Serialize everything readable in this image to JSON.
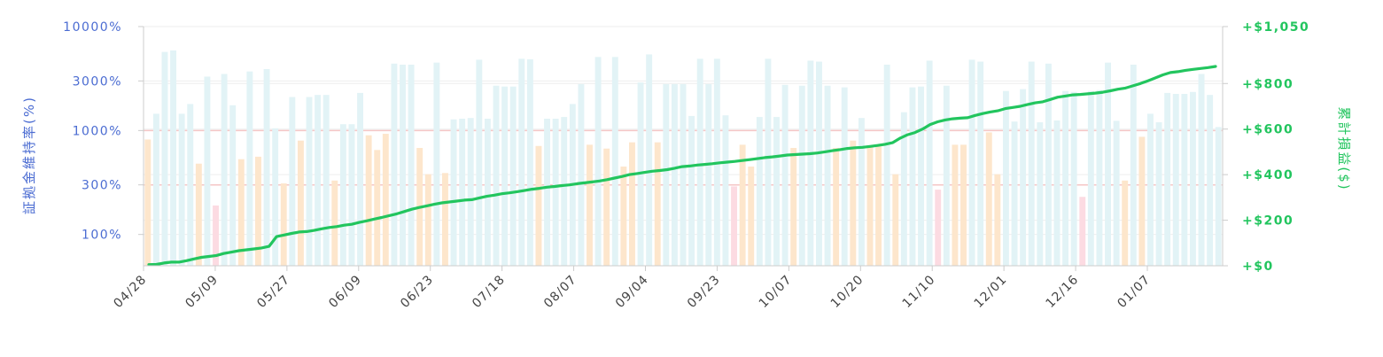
{
  "chart_data": {
    "type": "bar+line",
    "title": "",
    "x_tick_labels": [
      "04/28",
      "05/09",
      "05/27",
      "06/09",
      "06/23",
      "07/18",
      "08/07",
      "09/04",
      "09/23",
      "10/07",
      "10/20",
      "11/10",
      "12/01",
      "12/16",
      "01/07"
    ],
    "left_axis": {
      "label": "証拠金維持率(%)",
      "scale": "log",
      "range": [
        50,
        10000
      ],
      "tick_values": [
        100,
        300,
        1000,
        3000,
        10000
      ],
      "tick_labels": [
        "100%",
        "300%",
        "1000%",
        "3000%",
        "10000%"
      ],
      "reference_lines": [
        300,
        1000
      ]
    },
    "right_axis": {
      "label": "累計損益($)",
      "range": [
        0,
        1050
      ],
      "tick_values": [
        0,
        200,
        400,
        600,
        800,
        1050
      ],
      "tick_labels": [
        "+$0",
        "+$200",
        "+$400",
        "+$600",
        "+$800",
        "+$1,050"
      ]
    },
    "series": [
      {
        "kind": "bar",
        "axis": "left",
        "values": [
          820,
          1450,
          5700,
          5900,
          1450,
          1800,
          480,
          3300,
          190,
          3500,
          1750,
          530,
          3700,
          560,
          3900,
          1050,
          310,
          2100,
          800,
          2100,
          2200,
          2200,
          330,
          1150,
          1150,
          2300,
          900,
          650,
          930,
          4400,
          4300,
          4300,
          680,
          380,
          4500,
          390,
          1280,
          1300,
          1320,
          4800,
          1300,
          2700,
          2650,
          2650,
          4900,
          4850,
          710,
          1300,
          1300,
          1350,
          1800,
          2800,
          730,
          5100,
          670,
          5100,
          450,
          770,
          2900,
          5400,
          770,
          2800,
          2800,
          2800,
          1380,
          4900,
          2800,
          4900,
          1400,
          290,
          730,
          450,
          1350,
          4900,
          1350,
          2750,
          680,
          2700,
          4700,
          4600,
          2700,
          680,
          2600,
          800,
          1320,
          700,
          700,
          4300,
          380,
          1500,
          2600,
          2650,
          4700,
          270,
          2700,
          730,
          730,
          4800,
          4600,
          960,
          380,
          2400,
          1220,
          2500,
          4600,
          1200,
          4400,
          1250,
          2400,
          2350,
          230,
          2400,
          2450,
          4500,
          1240,
          330,
          4300,
          870,
          1450,
          1200,
          2300,
          2250,
          2250,
          2350,
          3500,
          2200,
          1080
        ],
        "colors": [
          "#fde6cc",
          "#e2f3f6",
          "#e2f3f6",
          "#e2f3f6",
          "#e2f3f6",
          "#e2f3f6",
          "#fde6cc",
          "#e2f3f6",
          "#fcdbe2",
          "#e2f3f6",
          "#e2f3f6",
          "#fde6cc",
          "#e2f3f6",
          "#fde6cc",
          "#e2f3f6",
          "#e2f3f6",
          "#fde6cc",
          "#e2f3f6",
          "#fde6cc",
          "#e2f3f6",
          "#e2f3f6",
          "#e2f3f6",
          "#fde6cc",
          "#e2f3f6",
          "#e2f3f6",
          "#e2f3f6",
          "#fde6cc",
          "#fde6cc",
          "#fde6cc",
          "#e2f3f6",
          "#e2f3f6",
          "#e2f3f6",
          "#fde6cc",
          "#fde6cc",
          "#e2f3f6",
          "#fde6cc",
          "#e2f3f6",
          "#e2f3f6",
          "#e2f3f6",
          "#e2f3f6",
          "#e2f3f6",
          "#e2f3f6",
          "#e2f3f6",
          "#e2f3f6",
          "#e2f3f6",
          "#e2f3f6",
          "#fde6cc",
          "#e2f3f6",
          "#e2f3f6",
          "#e2f3f6",
          "#e2f3f6",
          "#e2f3f6",
          "#fde6cc",
          "#e2f3f6",
          "#fde6cc",
          "#e2f3f6",
          "#fde6cc",
          "#fde6cc",
          "#e2f3f6",
          "#e2f3f6",
          "#fde6cc",
          "#e2f3f6",
          "#e2f3f6",
          "#e2f3f6",
          "#e2f3f6",
          "#e2f3f6",
          "#e2f3f6",
          "#e2f3f6",
          "#e2f3f6",
          "#fcdbe2",
          "#fde6cc",
          "#fde6cc",
          "#e2f3f6",
          "#e2f3f6",
          "#e2f3f6",
          "#e2f3f6",
          "#fde6cc",
          "#e2f3f6",
          "#e2f3f6",
          "#e2f3f6",
          "#e2f3f6",
          "#fde6cc",
          "#e2f3f6",
          "#fde6cc",
          "#e2f3f6",
          "#fde6cc",
          "#fde6cc",
          "#e2f3f6",
          "#fde6cc",
          "#e2f3f6",
          "#e2f3f6",
          "#e2f3f6",
          "#e2f3f6",
          "#fcdbe2",
          "#e2f3f6",
          "#fde6cc",
          "#fde6cc",
          "#e2f3f6",
          "#e2f3f6",
          "#fde6cc",
          "#fde6cc",
          "#e2f3f6",
          "#e2f3f6",
          "#e2f3f6",
          "#e2f3f6",
          "#e2f3f6",
          "#e2f3f6",
          "#e2f3f6",
          "#e2f3f6",
          "#e2f3f6",
          "#fcdbe2",
          "#e2f3f6",
          "#e2f3f6",
          "#e2f3f6",
          "#e2f3f6",
          "#fde6cc",
          "#e2f3f6",
          "#fde6cc",
          "#e2f3f6",
          "#e2f3f6",
          "#e2f3f6",
          "#e2f3f6",
          "#e2f3f6",
          "#e2f3f6",
          "#e2f3f6",
          "#e2f3f6",
          "#e2f3f6"
        ]
      },
      {
        "kind": "line",
        "axis": "right",
        "color": "#22c55e",
        "values": [
          5,
          6,
          12,
          16,
          16,
          22,
          30,
          37,
          41,
          45,
          54,
          60,
          66,
          70,
          74,
          78,
          85,
          128,
          135,
          142,
          148,
          150,
          155,
          162,
          168,
          172,
          178,
          182,
          190,
          197,
          205,
          212,
          220,
          228,
          238,
          248,
          256,
          263,
          270,
          276,
          280,
          284,
          288,
          290,
          298,
          305,
          310,
          316,
          320,
          325,
          330,
          336,
          340,
          345,
          348,
          352,
          355,
          360,
          364,
          368,
          372,
          378,
          385,
          392,
          400,
          405,
          410,
          415,
          418,
          422,
          428,
          435,
          438,
          442,
          445,
          448,
          452,
          455,
          458,
          462,
          466,
          470,
          475,
          478,
          482,
          486,
          488,
          490,
          492,
          495,
          500,
          505,
          510,
          515,
          518,
          520,
          524,
          528,
          533,
          540,
          560,
          575,
          585,
          600,
          620,
          632,
          640,
          645,
          648,
          650,
          660,
          668,
          675,
          680,
          690,
          695,
          700,
          708,
          715,
          720,
          730,
          740,
          745,
          750,
          752,
          755,
          758,
          762,
          768,
          775,
          780,
          790,
          800,
          812,
          825,
          838,
          848,
          852,
          858,
          862,
          866,
          870,
          875
        ]
      }
    ],
    "colors": {
      "left_axis": "#4b6cd2",
      "right_axis": "#22c55e",
      "bar_profit": "#e2f3f6",
      "bar_flat": "#fde6cc",
      "bar_loss": "#fcdbe2",
      "reference_line": "#f5c6c6",
      "grid": "#eeeeee",
      "x_ticks": "#444444"
    },
    "grid": true
  }
}
